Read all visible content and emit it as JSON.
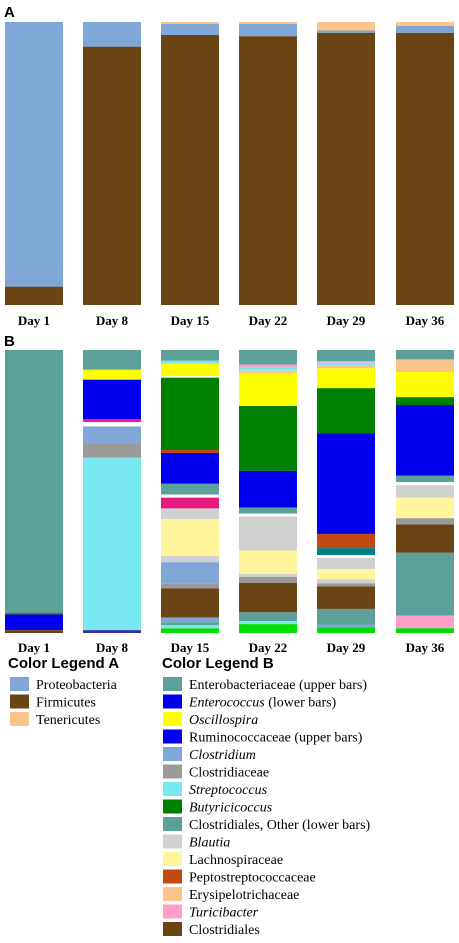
{
  "chart_data": [
    {
      "panel": "A",
      "type": "bar",
      "stacked": true,
      "categories": [
        "Day 1",
        "Day 8",
        "Day 15",
        "Day 22",
        "Day 29",
        "Day 36"
      ],
      "ylim": [
        0,
        1
      ],
      "series": [
        {
          "name": "Firmicutes",
          "color": "#6b4414",
          "values": [
            0.065,
            0.913,
            0.954,
            0.95,
            0.962,
            0.962
          ]
        },
        {
          "name": "Proteobacteria",
          "color": "#7ea6d6",
          "values": [
            0.935,
            0.087,
            0.04,
            0.043,
            0.008,
            0.025
          ]
        },
        {
          "name": "Tenericutes",
          "color": "#fbc48a",
          "values": [
            0,
            0,
            0.006,
            0.007,
            0.03,
            0.013
          ]
        }
      ]
    },
    {
      "panel": "B",
      "type": "bar",
      "stacked": true,
      "categories": [
        "Day 1",
        "Day 8",
        "Day 15",
        "Day 22",
        "Day 29",
        "Day 36"
      ],
      "ylim": [
        0,
        1
      ],
      "bars_top_to_bottom": [
        [
          {
            "color": "#5ca09a",
            "value": 0.93
          },
          {
            "color": "#444444",
            "value": 0.005
          },
          {
            "color": "#0000ee",
            "value": 0.055
          },
          {
            "color": "#6b4414",
            "value": 0.01
          }
        ],
        [
          {
            "color": "#5ca09a",
            "value": 0.07
          },
          {
            "color": "#ffff00",
            "value": 0.035
          },
          {
            "color": "#0000ee",
            "value": 0.14
          },
          {
            "color": "#ff1493",
            "value": 0.01
          },
          {
            "color": "#ffffff",
            "value": 0.015
          },
          {
            "color": "#7ea6d6",
            "value": 0.06
          },
          {
            "color": "#9a9a9a",
            "value": 0.05
          },
          {
            "color": "#7ae8f0",
            "value": 0.61
          },
          {
            "color": "#3030a0",
            "value": 0.01
          }
        ],
        [
          {
            "color": "#5ca09a",
            "value": 0.035
          },
          {
            "color": "#7ae8f0",
            "value": 0.01
          },
          {
            "color": "#ffff00",
            "value": 0.04
          },
          {
            "color": "#ffffff",
            "value": 0.005
          },
          {
            "color": "#008000",
            "value": 0.235
          },
          {
            "color": "#c04a10",
            "value": 0.01
          },
          {
            "color": "#0000ee",
            "value": 0.1
          },
          {
            "color": "#5ca09a",
            "value": 0.035
          },
          {
            "color": "#ffffff",
            "value": 0.01
          },
          {
            "color": "#e6197d",
            "value": 0.035
          },
          {
            "color": "#d0d0d0",
            "value": 0.035
          },
          {
            "color": "#fff59a",
            "value": 0.12
          },
          {
            "color": "#d0d0d0",
            "value": 0.02
          },
          {
            "color": "#7ea6d6",
            "value": 0.07
          },
          {
            "color": "#9a9a9a",
            "value": 0.015
          },
          {
            "color": "#6b4414",
            "value": 0.095
          },
          {
            "color": "#7ea6d6",
            "value": 0.015
          },
          {
            "color": "#5ca09a",
            "value": 0.01
          },
          {
            "color": "#7ae8f0",
            "value": 0.01
          },
          {
            "color": "#00dd00",
            "value": 0.015
          }
        ],
        [
          {
            "color": "#5ca09a",
            "value": 0.05
          },
          {
            "color": "#ff9ec8",
            "value": 0.01
          },
          {
            "color": "#7ae8f0",
            "value": 0.01
          },
          {
            "color": "#fbc48a",
            "value": 0.01
          },
          {
            "color": "#ffff00",
            "value": 0.11
          },
          {
            "color": "#008000",
            "value": 0.22
          },
          {
            "color": "#0000ee",
            "value": 0.125
          },
          {
            "color": "#5ca09a",
            "value": 0.02
          },
          {
            "color": "#ffffff",
            "value": 0.01
          },
          {
            "color": "#d0d0d0",
            "value": 0.115
          },
          {
            "color": "#fff59a",
            "value": 0.08
          },
          {
            "color": "#d0d0d0",
            "value": 0.01
          },
          {
            "color": "#9a9a9a",
            "value": 0.02
          },
          {
            "color": "#6b4414",
            "value": 0.1
          },
          {
            "color": "#5ca09a",
            "value": 0.03
          },
          {
            "color": "#7ae8f0",
            "value": 0.01
          },
          {
            "color": "#00dd00",
            "value": 0.03
          }
        ],
        [
          {
            "color": "#5ca09a",
            "value": 0.04
          },
          {
            "color": "#ff9ec8",
            "value": 0.005
          },
          {
            "color": "#7ae8f0",
            "value": 0.01
          },
          {
            "color": "#fbc48a",
            "value": 0.01
          },
          {
            "color": "#ffff00",
            "value": 0.07
          },
          {
            "color": "#008000",
            "value": 0.16
          },
          {
            "color": "#0000ee",
            "value": 0.355
          },
          {
            "color": "#c04a10",
            "value": 0.05
          },
          {
            "color": "#008080",
            "value": 0.025
          },
          {
            "color": "#ffffff",
            "value": 0.01
          },
          {
            "color": "#d0d0d0",
            "value": 0.04
          },
          {
            "color": "#fff59a",
            "value": 0.035
          },
          {
            "color": "#d0d0d0",
            "value": 0.015
          },
          {
            "color": "#9a9a9a",
            "value": 0.01
          },
          {
            "color": "#6b4414",
            "value": 0.08
          },
          {
            "color": "#5ca09a",
            "value": 0.055
          },
          {
            "color": "#7ea6d6",
            "value": 0.01
          },
          {
            "color": "#00dd00",
            "value": 0.02
          }
        ],
        [
          {
            "color": "#5ca09a",
            "value": 0.03
          },
          {
            "color": "#fbc48a",
            "value": 0.04
          },
          {
            "color": "#ffff00",
            "value": 0.08
          },
          {
            "color": "#008000",
            "value": 0.025
          },
          {
            "color": "#0000ee",
            "value": 0.225
          },
          {
            "color": "#5ca09a",
            "value": 0.02
          },
          {
            "color": "#ffffff",
            "value": 0.01
          },
          {
            "color": "#d0d0d0",
            "value": 0.04
          },
          {
            "color": "#fff59a",
            "value": 0.065
          },
          {
            "color": "#9a9a9a",
            "value": 0.02
          },
          {
            "color": "#6b4414",
            "value": 0.09
          },
          {
            "color": "#5ca09a",
            "value": 0.2
          },
          {
            "color": "#ff9ec8",
            "value": 0.04
          },
          {
            "color": "#00dd00",
            "value": 0.015
          }
        ]
      ]
    }
  ],
  "panels": {
    "a": "A",
    "b": "B"
  },
  "legend_a": {
    "title": "Color Legend A",
    "items": [
      {
        "label": "Proteobacteria",
        "color": "#7ea6d6",
        "italic": false
      },
      {
        "label": "Firmicutes",
        "color": "#6b4414",
        "italic": false
      },
      {
        "label": "Tenericutes",
        "color": "#fbc48a",
        "italic": false
      }
    ]
  },
  "legend_b": {
    "title": "Color Legend B",
    "items": [
      {
        "label": "Enterobacteriaceae (upper bars)",
        "color": "#5ca09a",
        "italic": false
      },
      {
        "label": "Enterococcus",
        "suffix": " (lower bars)",
        "color": "#0000ee",
        "italic": true
      },
      {
        "label": "Oscillospira",
        "color": "#ffff00",
        "italic": true
      },
      {
        "label": "Ruminococcaceae (upper bars)",
        "color": "#0000ee",
        "italic": false
      },
      {
        "label": "Clostridium",
        "color": "#7ea6d6",
        "italic": true
      },
      {
        "label": "Clostridiaceae",
        "color": "#9a9a9a",
        "italic": false
      },
      {
        "label": "Streptococcus",
        "color": "#7ae8f0",
        "italic": true
      },
      {
        "label": "Butyricicoccus",
        "color": "#008000",
        "italic": true
      },
      {
        "label": "Clostridiales, Other (lower bars)",
        "color": "#5ca09a",
        "italic": false
      },
      {
        "label": "Blautia",
        "color": "#d0d0d0",
        "italic": true
      },
      {
        "label": "Lachnospiraceae",
        "color": "#fff59a",
        "italic": false
      },
      {
        "label": "Peptostreptococcaceae",
        "color": "#c04a10",
        "italic": false
      },
      {
        "label": "Erysipelotrichaceae",
        "color": "#fbc48a",
        "italic": false
      },
      {
        "label": "Turicibacter",
        "color": "#ff9ec8",
        "italic": true
      },
      {
        "label": "Clostridiales",
        "color": "#6b4414",
        "italic": false
      }
    ]
  }
}
